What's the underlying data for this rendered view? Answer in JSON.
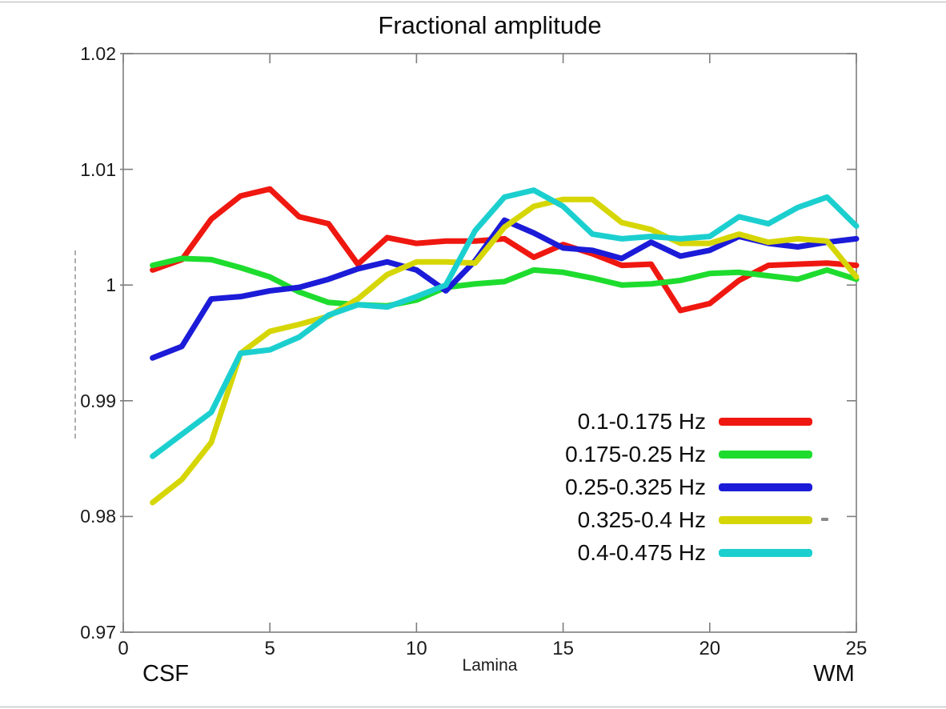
{
  "figure": {
    "title": "Fractional amplitude",
    "xlabel": "Lamina",
    "left_region_label": "CSF",
    "right_region_label": "WM"
  },
  "chart_data": {
    "type": "line",
    "title": "Fractional amplitude",
    "xlabel": "Lamina",
    "ylabel": "",
    "x": [
      1,
      2,
      3,
      4,
      5,
      6,
      7,
      8,
      9,
      10,
      11,
      12,
      13,
      14,
      15,
      16,
      17,
      18,
      19,
      20,
      21,
      22,
      23,
      24,
      25
    ],
    "xlim": [
      0,
      25
    ],
    "ylim": [
      0.97,
      1.02
    ],
    "xtick_values": [
      0,
      5,
      10,
      15,
      20,
      25
    ],
    "xtick_labels": [
      "0",
      "5",
      "10",
      "15",
      "20",
      "25"
    ],
    "ytick_values": [
      1.02,
      1.01,
      1.0,
      0.99,
      0.98,
      0.97
    ],
    "ytick_labels": [
      "1.02",
      "1.01",
      "1",
      "0.99",
      "0.98",
      "0.97"
    ],
    "grid": false,
    "legend_position": "inside-lower-right",
    "axis_color": "#7e7e7e",
    "x_start_label": "CSF",
    "x_end_label": "WM",
    "series": [
      {
        "name": "0.1-0.175 Hz",
        "color": "#ef1810",
        "values": [
          1.0013,
          1.0022,
          1.0057,
          1.0077,
          1.0083,
          1.0059,
          1.0053,
          1.0018,
          1.0041,
          1.0036,
          1.0038,
          1.0038,
          1.004,
          1.0024,
          1.0035,
          1.0027,
          1.0017,
          1.0018,
          0.9978,
          0.9984,
          1.0004,
          1.0017,
          1.0018,
          1.0019,
          1.0017
        ]
      },
      {
        "name": "0.175-0.25 Hz",
        "color": "#1edc2e",
        "values": [
          1.0017,
          1.0023,
          1.0022,
          1.0015,
          1.0007,
          0.9994,
          0.9985,
          0.9983,
          0.9982,
          0.9987,
          0.9998,
          1.0001,
          1.0003,
          1.0013,
          1.0011,
          1.0006,
          1.0,
          1.0001,
          1.0004,
          1.001,
          1.0011,
          1.0008,
          1.0005,
          1.0013,
          1.0005
        ]
      },
      {
        "name": "0.25-0.325 Hz",
        "color": "#1b1bd8",
        "values": [
          0.9937,
          0.9947,
          0.9988,
          0.999,
          0.9995,
          0.9998,
          1.0005,
          1.0014,
          1.002,
          1.0013,
          0.9995,
          1.0021,
          1.0056,
          1.0045,
          1.0032,
          1.003,
          1.0023,
          1.0037,
          1.0025,
          1.003,
          1.0042,
          1.0036,
          1.0033,
          1.0037,
          1.004
        ]
      },
      {
        "name": "0.325-0.4 Hz",
        "color": "#d6d606",
        "values": [
          0.9812,
          0.9832,
          0.9864,
          0.9941,
          0.996,
          0.9966,
          0.9973,
          0.9988,
          1.0009,
          1.002,
          1.002,
          1.0019,
          1.005,
          1.0068,
          1.0074,
          1.0074,
          1.0054,
          1.0048,
          1.0036,
          1.0036,
          1.0044,
          1.0037,
          1.004,
          1.0038,
          1.0007
        ]
      },
      {
        "name": "0.4-0.475 Hz",
        "color": "#1ccfcf",
        "values": [
          0.9852,
          0.9871,
          0.989,
          0.9941,
          0.9944,
          0.9955,
          0.9974,
          0.9983,
          0.9981,
          0.999,
          1.0,
          1.0047,
          1.0076,
          1.0082,
          1.0068,
          1.0044,
          1.004,
          1.0042,
          1.004,
          1.0042,
          1.0059,
          1.0053,
          1.0067,
          1.0076,
          1.0051
        ]
      }
    ]
  }
}
